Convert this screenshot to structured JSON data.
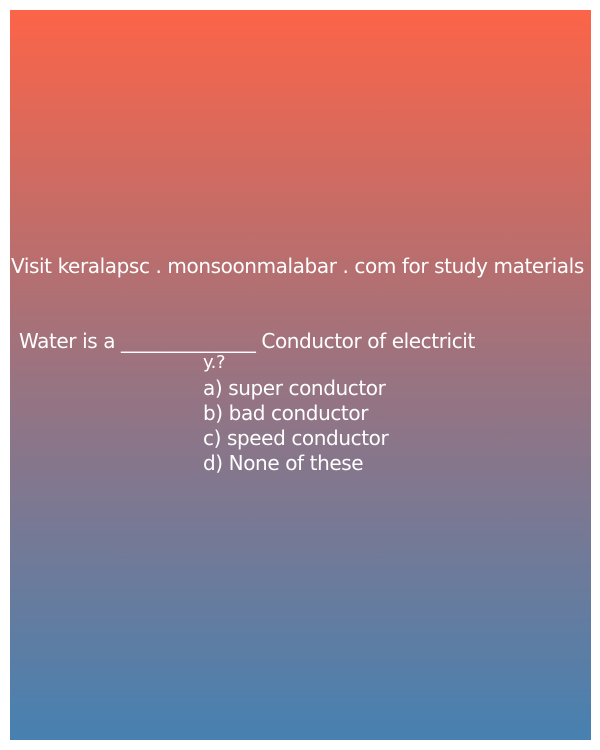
{
  "promo": {
    "text": "Visit keralapsc . monsoonmalabar . com for study materials"
  },
  "question": {
    "line1": "Water is a ______________ Conductor of electricit",
    "line2": "y.?"
  },
  "options": [
    {
      "label": "a) super conductor"
    },
    {
      "label": "b) bad conductor"
    },
    {
      "label": "c) speed conductor"
    },
    {
      "label": "d) None of these"
    }
  ],
  "colors": {
    "gradient_top": "#fc6448",
    "gradient_middle": "#9a7380",
    "gradient_bottom": "#4781b1",
    "text": "#ffffff"
  }
}
